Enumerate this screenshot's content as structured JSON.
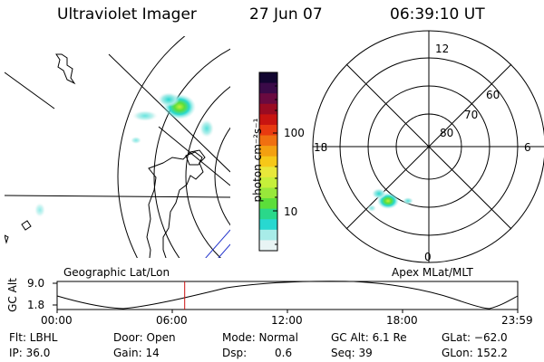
{
  "header": {
    "instrument": "Ultraviolet Imager",
    "date": "27 Jun 07",
    "time": "06:39:10 UT"
  },
  "colorbar": {
    "label": "photon cm⁻²s⁻¹",
    "ticks": [
      "100",
      "10"
    ],
    "colors": [
      "#120530",
      "#3a0a48",
      "#6a0a40",
      "#9a0b22",
      "#c81410",
      "#e83a10",
      "#f07010",
      "#f4a010",
      "#f6c818",
      "#e8e83a",
      "#c6ef3a",
      "#98e83a",
      "#5cde3a",
      "#2ad88a",
      "#28d8d0",
      "#a8ece8",
      "#e8f4f4"
    ]
  },
  "polar": {
    "hour_labels": [
      "12",
      "18",
      "6",
      "0"
    ],
    "lat_labels": [
      "60",
      "70",
      "80"
    ]
  },
  "panel_labels": {
    "left": "Geographic Lat/Lon",
    "right": "Apex MLat/MLT"
  },
  "timeline": {
    "ylabel": "GC Alt",
    "y_ticks": [
      "9.0",
      "1.8"
    ],
    "x_ticks": [
      "00:00",
      "06:00",
      "12:00",
      "18:00",
      "23:59"
    ],
    "marker_time": "06:39",
    "marker_fraction": 0.277
  },
  "params": {
    "flt": "Flt: LBHL",
    "ip": "IP: 36.0",
    "door": "Door: Open",
    "gain": "Gain: 14",
    "mode": "Mode: Normal",
    "dsp_label": "Dsp:",
    "dsp_value": "0.6",
    "gcalt": "GC Alt: 6.1 Re",
    "seq": "Seq: 39",
    "glat": "GLat: −62.0",
    "glon": "GLon: 152.2"
  }
}
